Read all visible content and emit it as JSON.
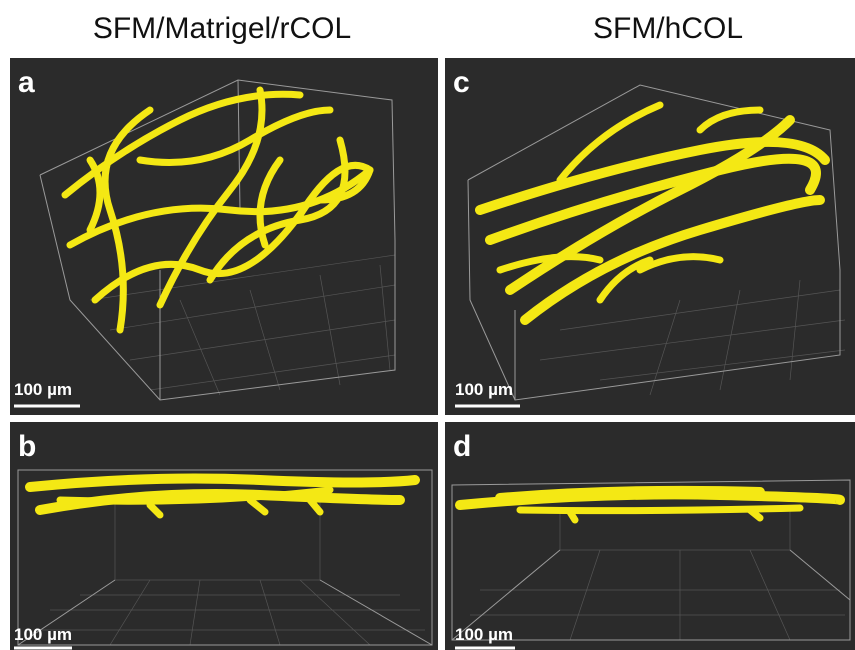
{
  "columns": [
    {
      "title": "SFM/Matrigel/rCOL"
    },
    {
      "title": "SFM/hCOL"
    }
  ],
  "panels": [
    {
      "label": "a",
      "scale_bar": "100 µm"
    },
    {
      "label": "c",
      "scale_bar": "100 µm"
    },
    {
      "label": "b",
      "scale_bar": "100 µm"
    },
    {
      "label": "d",
      "scale_bar": "100 µm"
    }
  ]
}
